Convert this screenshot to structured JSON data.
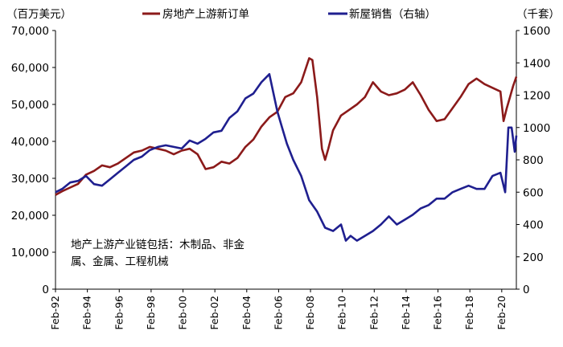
{
  "chart_data": {
    "type": "line",
    "left_axis_unit": "（百万美元）",
    "right_axis_unit": "（千套）",
    "annotation": [
      "地产上游产业链包括：木制品、非金",
      "属、金属、工程机械"
    ],
    "left_axis": {
      "ylim": [
        0,
        70000
      ],
      "ticks": [
        0,
        10000,
        20000,
        30000,
        40000,
        50000,
        60000,
        70000
      ],
      "tick_labels": [
        "0",
        "10,000",
        "20,000",
        "30,000",
        "40,000",
        "50,000",
        "60,000",
        "70,000"
      ]
    },
    "right_axis": {
      "ylim": [
        0,
        1600
      ],
      "ticks": [
        0,
        200,
        400,
        600,
        800,
        1000,
        1200,
        1400,
        1600
      ],
      "tick_labels": [
        "0",
        "200",
        "400",
        "600",
        "800",
        "1000",
        "1200",
        "1400",
        "1600"
      ]
    },
    "x_axis": {
      "xlim": [
        1992.083,
        2021.0
      ],
      "ticks": [
        1992.083,
        1994.083,
        1996.083,
        1998.083,
        2000.083,
        2002.083,
        2004.083,
        2006.083,
        2008.083,
        2010.083,
        2012.083,
        2014.083,
        2016.083,
        2018.083,
        2020.083
      ],
      "tick_labels": [
        "Feb-92",
        "Feb-94",
        "Feb-96",
        "Feb-98",
        "Feb-00",
        "Feb-02",
        "Feb-04",
        "Feb-06",
        "Feb-08",
        "Feb-10",
        "Feb-12",
        "Feb-14",
        "Feb-16",
        "Feb-18",
        "Feb-20"
      ]
    },
    "colors": {
      "orders": "#8B1A1A",
      "sales": "#1F1F8F"
    },
    "series": [
      {
        "name": "房地产上游新订单",
        "axis": "left",
        "x": [
          1992.08,
          1992.5,
          1993.0,
          1993.5,
          1994.0,
          1994.5,
          1995.0,
          1995.5,
          1996.0,
          1996.5,
          1997.0,
          1997.5,
          1998.0,
          1998.5,
          1999.0,
          1999.5,
          2000.0,
          2000.5,
          2001.0,
          2001.5,
          2002.0,
          2002.5,
          2003.0,
          2003.5,
          2004.0,
          2004.5,
          2005.0,
          2005.5,
          2006.0,
          2006.5,
          2007.0,
          2007.5,
          2008.0,
          2008.2,
          2008.5,
          2008.8,
          2009.0,
          2009.2,
          2009.5,
          2010.0,
          2010.5,
          2011.0,
          2011.5,
          2012.0,
          2012.5,
          2013.0,
          2013.5,
          2014.0,
          2014.5,
          2015.0,
          2015.5,
          2016.0,
          2016.5,
          2017.0,
          2017.5,
          2018.0,
          2018.5,
          2019.0,
          2019.5,
          2020.0,
          2020.2,
          2020.4,
          2020.6,
          2020.8,
          2021.0
        ],
        "values": [
          25500,
          26500,
          27500,
          28500,
          31000,
          32000,
          33500,
          33000,
          34000,
          35500,
          37000,
          37500,
          38500,
          38000,
          37500,
          36500,
          37500,
          38000,
          36500,
          32500,
          33000,
          34500,
          34000,
          35500,
          38500,
          40500,
          44000,
          46500,
          48000,
          52000,
          53000,
          56000,
          62500,
          62000,
          52000,
          38000,
          35000,
          38000,
          43000,
          47000,
          48500,
          50000,
          52000,
          56000,
          53500,
          52500,
          53000,
          54000,
          56000,
          52500,
          48500,
          45500,
          46000,
          49000,
          52000,
          55500,
          57000,
          55500,
          54500,
          53500,
          45500,
          49000,
          52000,
          55000,
          57500
        ]
      },
      {
        "name": "新屋销售（右轴）",
        "axis": "right",
        "x": [
          1992.08,
          1992.5,
          1993.0,
          1993.5,
          1994.0,
          1994.5,
          1995.0,
          1995.5,
          1996.0,
          1996.5,
          1997.0,
          1997.5,
          1998.0,
          1998.5,
          1999.0,
          1999.5,
          2000.0,
          2000.5,
          2001.0,
          2001.5,
          2002.0,
          2002.5,
          2003.0,
          2003.5,
          2004.0,
          2004.5,
          2005.0,
          2005.5,
          2006.0,
          2006.3,
          2006.6,
          2007.0,
          2007.5,
          2008.0,
          2008.5,
          2009.0,
          2009.5,
          2010.0,
          2010.3,
          2010.6,
          2011.0,
          2011.5,
          2012.0,
          2012.5,
          2013.0,
          2013.5,
          2014.0,
          2014.5,
          2015.0,
          2015.5,
          2016.0,
          2016.5,
          2017.0,
          2017.5,
          2018.0,
          2018.5,
          2019.0,
          2019.5,
          2020.0,
          2020.3,
          2020.5,
          2020.7,
          2020.9,
          2021.0
        ],
        "values": [
          600,
          620,
          660,
          670,
          700,
          650,
          640,
          680,
          720,
          760,
          800,
          820,
          860,
          880,
          890,
          880,
          870,
          920,
          900,
          930,
          970,
          980,
          1060,
          1100,
          1180,
          1210,
          1280,
          1330,
          1100,
          1000,
          900,
          800,
          700,
          550,
          480,
          380,
          360,
          400,
          300,
          330,
          300,
          330,
          360,
          400,
          450,
          400,
          430,
          460,
          500,
          520,
          560,
          560,
          600,
          620,
          640,
          620,
          620,
          700,
          720,
          600,
          1000,
          1000,
          850,
          950
        ]
      }
    ]
  }
}
